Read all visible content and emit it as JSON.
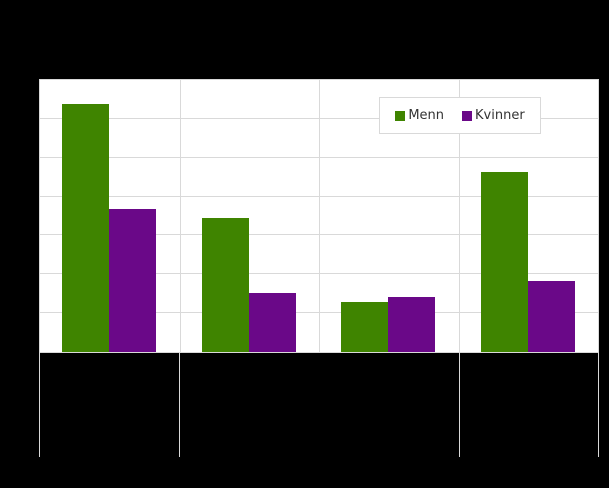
{
  "chart_data": {
    "type": "bar",
    "title": "",
    "xlabel": "",
    "ylabel": "",
    "categories": [
      "",
      "",
      "",
      ""
    ],
    "series": [
      {
        "name": "Menn",
        "color": "#3f8400",
        "values": [
          6.37,
          3.45,
          1.28,
          4.63
        ]
      },
      {
        "name": "Kvinner",
        "color": "#6a0888",
        "values": [
          3.68,
          1.53,
          1.41,
          1.82
        ]
      }
    ],
    "ylim": [
      0,
      7
    ],
    "yticks": [
      0,
      1,
      2,
      3,
      4,
      5,
      6,
      7
    ],
    "grid": true,
    "legend_position": "top-right-inside",
    "note": "Axis tick labels and category labels are not visible (rendered black on black); values in gridline units."
  },
  "legend": {
    "items": [
      {
        "label": "Menn",
        "color": "#3f8400"
      },
      {
        "label": "Kvinner",
        "color": "#6a0888"
      }
    ]
  }
}
